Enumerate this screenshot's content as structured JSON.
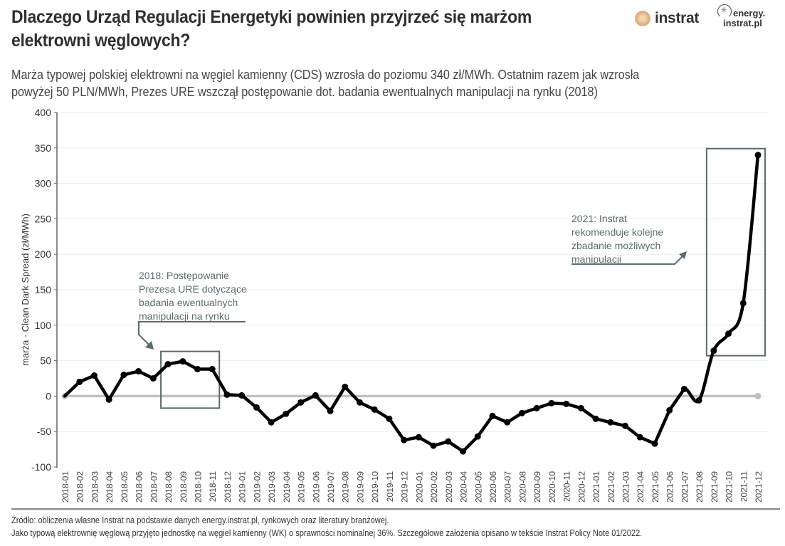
{
  "header": {
    "title_line1": "Dlaczego Urząd Regulacji Energetyki powinien przyjrzeć się marżom",
    "title_line2": "elektrowni węglowych?",
    "subtitle_line1": "Marża typowej polskiej elektrowni na węgiel kamienny (CDS) wzrosła do poziomu 340 zł/MWh. Ostatnim razem jak wzrosła",
    "subtitle_line2": "powyżej 50 PLN/MWh, Prezes URE wszczął postępowanie dot. badania ewentualnych manipulacji na rynku (2018)"
  },
  "logos": {
    "instrat": "instrat",
    "energy_line1": "energy.",
    "energy_line2": "instrat.pl"
  },
  "footer": {
    "line1": "Źródło: obliczenia własne Instrat na podstawie danych energy.instrat.pl, rynkowych oraz literatury branżowej.",
    "line2": "Jako typową elektrownię węglową przyjęto jednostkę na węgiel kamienny (WK) o sprawności nominalnej 36%. Szczegółowe założenia opisano w tekście Instrat Policy Note 01/2022."
  },
  "colors": {
    "line": "#000000",
    "zero_line": "#c0c0c0",
    "annotation": "#5a6e64",
    "grid": "#eeeeee",
    "axis": "#666666"
  },
  "chart_data": {
    "type": "line",
    "title": "Dlaczego Urząd Regulacji Energetyki powinien przyjrzeć się marżom elektrowni węglowych?",
    "xlabel": "",
    "ylabel": "marża - Clean Dark Spread (zł/MWh)",
    "ylim": [
      -100,
      400
    ],
    "yticks": [
      -100,
      -50,
      0,
      50,
      100,
      150,
      200,
      250,
      300,
      350,
      400
    ],
    "grid": true,
    "categories": [
      "2018-01",
      "2018-02",
      "2018-03",
      "2018-04",
      "2018-05",
      "2018-06",
      "2018-07",
      "2018-08",
      "2018-09",
      "2018-10",
      "2018-11",
      "2018-12",
      "2019-01",
      "2019-02",
      "2019-03",
      "2019-04",
      "2019-05",
      "2019-06",
      "2019-07",
      "2019-08",
      "2019-09",
      "2019-10",
      "2019-11",
      "2019-12",
      "2020-01",
      "2020-02",
      "2020-03",
      "2020-04",
      "2020-05",
      "2020-06",
      "2020-07",
      "2020-08",
      "2020-09",
      "2020-10",
      "2020-11",
      "2020-12",
      "2021-01",
      "2021-02",
      "2021-03",
      "2021-04",
      "2021-05",
      "2021-06",
      "2021-07",
      "2021-08",
      "2021-09",
      "2021-10",
      "2021-11",
      "2021-12"
    ],
    "series": [
      {
        "name": "CDS",
        "values": [
          0,
          20,
          29,
          -5,
          30,
          35,
          25,
          45,
          49,
          38,
          38,
          2,
          1,
          -16,
          -37,
          -25,
          -9,
          1,
          -21,
          13,
          -9,
          -19,
          -32,
          -62,
          -58,
          -70,
          -64,
          -78,
          -57,
          -28,
          -37,
          -24,
          -17,
          -10,
          -11,
          -17,
          -32,
          -37,
          -42,
          -58,
          -67,
          -20,
          10,
          -6,
          64,
          88,
          131,
          340
        ]
      },
      {
        "name": "zero",
        "values": [
          0,
          0
        ]
      }
    ],
    "annotations": [
      {
        "text_lines": [
          "2018: Postępowanie",
          "Prezesa URE dotyczące",
          "badania ewentualnych",
          "manipulacji na rynku"
        ],
        "box_x": [
          "2018-08",
          "2018-11"
        ],
        "box_y": [
          -17,
          63
        ]
      },
      {
        "text_lines": [
          "2021: Instrat",
          "rekomenduje kolejne",
          "zbadanie możliwych",
          "manipulacji"
        ],
        "box_x": [
          "2021-09",
          "2021-12"
        ],
        "box_y": [
          57,
          349
        ]
      }
    ]
  }
}
